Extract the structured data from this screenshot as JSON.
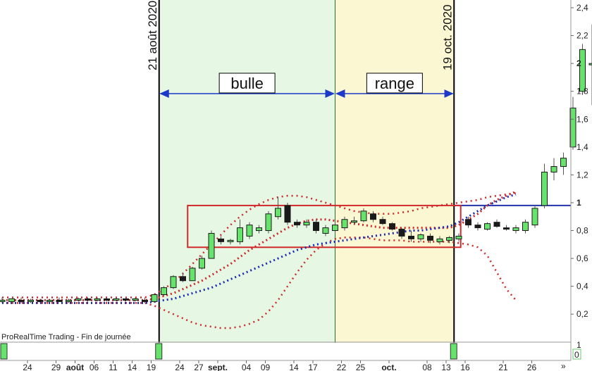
{
  "chart_data": {
    "type": "candlestick",
    "footer": "ProRealTime Trading - Fin de journée",
    "y_axis": {
      "range": [
        0.1,
        2.5
      ],
      "ticks": [
        "2,4",
        "2,2",
        "2",
        "1,8",
        "1,6",
        "1,4",
        "1,2",
        "1",
        "0,8",
        "0,6",
        "0,4",
        "0,2"
      ],
      "bold_ticks": [
        "2",
        "1"
      ]
    },
    "x_ticks": [
      {
        "label": "24",
        "i": 0
      },
      {
        "label": "29",
        "i": 3
      },
      {
        "label": "août",
        "i": 5,
        "bold": true
      },
      {
        "label": "06",
        "i": 7
      },
      {
        "label": "11",
        "i": 9
      },
      {
        "label": "14",
        "i": 11
      },
      {
        "label": "19",
        "i": 13
      },
      {
        "label": "24",
        "i": 16
      },
      {
        "label": "27",
        "i": 18
      },
      {
        "label": "sept.",
        "i": 20,
        "bold": true
      },
      {
        "label": "04",
        "i": 23
      },
      {
        "label": "09",
        "i": 25
      },
      {
        "label": "14",
        "i": 28
      },
      {
        "label": "17",
        "i": 30
      },
      {
        "label": "22",
        "i": 33
      },
      {
        "label": "25",
        "i": 35
      },
      {
        "label": "oct.",
        "i": 38,
        "bold": true
      },
      {
        "label": "08",
        "i": 42
      },
      {
        "label": "13",
        "i": 44
      },
      {
        "label": "16",
        "i": 46
      },
      {
        "label": "21",
        "i": 50
      },
      {
        "label": "26",
        "i": 53
      }
    ],
    "vertical_labels": [
      {
        "text": "21 août 2020",
        "i": 16.5
      },
      {
        "text": "19 oct. 2020",
        "i": 47.5
      }
    ],
    "zones": [
      {
        "name": "bulle",
        "from": 16.5,
        "to": 35,
        "color": "#e6f7e4"
      },
      {
        "name": "range",
        "from": 35,
        "to": 47.5,
        "color": "#fbf7d2"
      }
    ],
    "reference_line": 0.98,
    "range_box": {
      "from": 19.5,
      "to": 48.2,
      "low": 0.68,
      "high": 0.98
    },
    "candles": [
      {
        "o": 0.3,
        "h": 0.32,
        "l": 0.28,
        "c": 0.3
      },
      {
        "o": 0.29,
        "h": 0.31,
        "l": 0.28,
        "c": 0.31
      },
      {
        "o": 0.3,
        "h": 0.32,
        "l": 0.28,
        "c": 0.29
      },
      {
        "o": 0.29,
        "h": 0.31,
        "l": 0.28,
        "c": 0.3
      },
      {
        "o": 0.3,
        "h": 0.31,
        "l": 0.28,
        "c": 0.29
      },
      {
        "o": 0.29,
        "h": 0.31,
        "l": 0.28,
        "c": 0.3
      },
      {
        "o": 0.3,
        "h": 0.32,
        "l": 0.29,
        "c": 0.29
      },
      {
        "o": 0.29,
        "h": 0.31,
        "l": 0.28,
        "c": 0.3
      },
      {
        "o": 0.3,
        "h": 0.32,
        "l": 0.29,
        "c": 0.31
      },
      {
        "o": 0.31,
        "h": 0.32,
        "l": 0.29,
        "c": 0.3
      },
      {
        "o": 0.3,
        "h": 0.32,
        "l": 0.29,
        "c": 0.31
      },
      {
        "o": 0.31,
        "h": 0.32,
        "l": 0.29,
        "c": 0.3
      },
      {
        "o": 0.3,
        "h": 0.32,
        "l": 0.29,
        "c": 0.31
      },
      {
        "o": 0.31,
        "h": 0.32,
        "l": 0.29,
        "c": 0.3
      },
      {
        "o": 0.3,
        "h": 0.32,
        "l": 0.29,
        "c": 0.31
      },
      {
        "o": 0.3,
        "h": 0.32,
        "l": 0.28,
        "c": 0.29
      },
      {
        "o": 0.29,
        "h": 0.35,
        "l": 0.28,
        "c": 0.34
      },
      {
        "o": 0.34,
        "h": 0.4,
        "l": 0.33,
        "c": 0.39
      },
      {
        "o": 0.39,
        "h": 0.48,
        "l": 0.38,
        "c": 0.47
      },
      {
        "o": 0.47,
        "h": 0.5,
        "l": 0.43,
        "c": 0.44
      },
      {
        "o": 0.44,
        "h": 0.54,
        "l": 0.44,
        "c": 0.53
      },
      {
        "o": 0.53,
        "h": 0.62,
        "l": 0.52,
        "c": 0.6
      },
      {
        "o": 0.6,
        "h": 0.8,
        "l": 0.6,
        "c": 0.78
      },
      {
        "o": 0.74,
        "h": 0.76,
        "l": 0.7,
        "c": 0.72
      },
      {
        "o": 0.72,
        "h": 0.74,
        "l": 0.7,
        "c": 0.73
      },
      {
        "o": 0.72,
        "h": 0.88,
        "l": 0.7,
        "c": 0.82
      },
      {
        "o": 0.76,
        "h": 0.86,
        "l": 0.74,
        "c": 0.84
      },
      {
        "o": 0.8,
        "h": 0.84,
        "l": 0.78,
        "c": 0.82
      },
      {
        "o": 0.8,
        "h": 0.94,
        "l": 0.78,
        "c": 0.92
      },
      {
        "o": 0.9,
        "h": 1.04,
        "l": 0.88,
        "c": 0.96
      },
      {
        "o": 0.98,
        "h": 1.0,
        "l": 0.84,
        "c": 0.86
      },
      {
        "o": 0.86,
        "h": 0.88,
        "l": 0.82,
        "c": 0.84
      },
      {
        "o": 0.84,
        "h": 0.88,
        "l": 0.82,
        "c": 0.86
      },
      {
        "o": 0.86,
        "h": 0.88,
        "l": 0.78,
        "c": 0.8
      },
      {
        "o": 0.78,
        "h": 0.84,
        "l": 0.76,
        "c": 0.82
      },
      {
        "o": 0.8,
        "h": 0.86,
        "l": 0.78,
        "c": 0.84
      },
      {
        "o": 0.82,
        "h": 0.9,
        "l": 0.8,
        "c": 0.88
      },
      {
        "o": 0.86,
        "h": 0.9,
        "l": 0.84,
        "c": 0.87
      },
      {
        "o": 0.87,
        "h": 0.96,
        "l": 0.86,
        "c": 0.94
      },
      {
        "o": 0.92,
        "h": 0.94,
        "l": 0.86,
        "c": 0.88
      },
      {
        "o": 0.88,
        "h": 0.9,
        "l": 0.84,
        "c": 0.85
      },
      {
        "o": 0.85,
        "h": 0.86,
        "l": 0.8,
        "c": 0.81
      },
      {
        "o": 0.81,
        "h": 0.82,
        "l": 0.74,
        "c": 0.76
      },
      {
        "o": 0.76,
        "h": 0.8,
        "l": 0.72,
        "c": 0.74
      },
      {
        "o": 0.74,
        "h": 0.78,
        "l": 0.72,
        "c": 0.77
      },
      {
        "o": 0.76,
        "h": 0.78,
        "l": 0.71,
        "c": 0.73
      },
      {
        "o": 0.72,
        "h": 0.76,
        "l": 0.7,
        "c": 0.74
      },
      {
        "o": 0.73,
        "h": 0.76,
        "l": 0.71,
        "c": 0.75
      },
      {
        "o": 0.74,
        "h": 0.78,
        "l": 0.72,
        "c": 0.76
      },
      {
        "o": 0.88,
        "h": 0.9,
        "l": 0.82,
        "c": 0.84
      },
      {
        "o": 0.84,
        "h": 0.86,
        "l": 0.8,
        "c": 0.82
      },
      {
        "o": 0.81,
        "h": 0.86,
        "l": 0.8,
        "c": 0.85
      },
      {
        "o": 0.86,
        "h": 0.88,
        "l": 0.82,
        "c": 0.83
      },
      {
        "o": 0.82,
        "h": 0.84,
        "l": 0.8,
        "c": 0.81
      },
      {
        "o": 0.8,
        "h": 0.84,
        "l": 0.78,
        "c": 0.82
      },
      {
        "o": 0.8,
        "h": 0.88,
        "l": 0.78,
        "c": 0.86
      },
      {
        "o": 0.84,
        "h": 0.98,
        "l": 0.82,
        "c": 0.96
      },
      {
        "o": 0.98,
        "h": 1.28,
        "l": 0.96,
        "c": 1.22
      },
      {
        "o": 1.22,
        "h": 1.32,
        "l": 1.16,
        "c": 1.26
      },
      {
        "o": 1.26,
        "h": 1.36,
        "l": 1.2,
        "c": 1.32
      },
      {
        "o": 1.4,
        "h": 1.76,
        "l": 1.38,
        "c": 1.68
      },
      {
        "o": 1.8,
        "h": 2.14,
        "l": 1.78,
        "c": 2.1
      },
      {
        "o": 2.0,
        "h": 2.28,
        "l": 1.7,
        "c": 2.0
      }
    ],
    "bands": {
      "upper": [
        0.32,
        0.32,
        0.32,
        0.32,
        0.32,
        0.32,
        0.32,
        0.32,
        0.32,
        0.32,
        0.32,
        0.32,
        0.32,
        0.32,
        0.32,
        0.32,
        0.34,
        0.38,
        0.43,
        0.49,
        0.56,
        0.63,
        0.7,
        0.77,
        0.84,
        0.9,
        0.95,
        0.99,
        1.02,
        1.04,
        1.05,
        1.05,
        1.04,
        1.02,
        1.0,
        0.98,
        0.96,
        0.94,
        0.93,
        0.92,
        0.92,
        0.92,
        0.93,
        0.94,
        0.96,
        0.97,
        0.98,
        0.99,
        1.0,
        1.01,
        1.02,
        1.04,
        1.05,
        1.06,
        1.07
      ],
      "lower": [
        0.28,
        0.28,
        0.28,
        0.28,
        0.28,
        0.28,
        0.28,
        0.28,
        0.28,
        0.28,
        0.28,
        0.28,
        0.28,
        0.28,
        0.28,
        0.28,
        0.26,
        0.23,
        0.2,
        0.17,
        0.14,
        0.12,
        0.11,
        0.1,
        0.1,
        0.11,
        0.13,
        0.16,
        0.22,
        0.3,
        0.4,
        0.5,
        0.59,
        0.66,
        0.71,
        0.74,
        0.75,
        0.75,
        0.75,
        0.74,
        0.73,
        0.73,
        0.73,
        0.72,
        0.72,
        0.72,
        0.72,
        0.72,
        0.71,
        0.7,
        0.68,
        0.62,
        0.5,
        0.38,
        0.3
      ],
      "middle": [
        0.3,
        0.3,
        0.3,
        0.3,
        0.3,
        0.3,
        0.3,
        0.3,
        0.3,
        0.3,
        0.3,
        0.3,
        0.3,
        0.3,
        0.3,
        0.3,
        0.31,
        0.33,
        0.35,
        0.38,
        0.41,
        0.44,
        0.48,
        0.52,
        0.56,
        0.61,
        0.66,
        0.7,
        0.74,
        0.78,
        0.82,
        0.85,
        0.87,
        0.88,
        0.88,
        0.87,
        0.86,
        0.85,
        0.84,
        0.83,
        0.82,
        0.82,
        0.82,
        0.82,
        0.82,
        0.82,
        0.82,
        0.82,
        0.84,
        0.88,
        0.92,
        0.98,
        1.02,
        1.05,
        1.08
      ],
      "lower_dark": [
        0.28,
        0.28,
        0.28,
        0.28,
        0.28,
        0.28,
        0.28,
        0.28,
        0.28,
        0.28,
        0.28,
        0.28,
        0.28,
        0.28,
        0.28,
        0.28,
        0.29,
        0.3,
        0.31,
        0.33,
        0.35,
        0.37,
        0.39,
        0.42,
        0.45,
        0.48,
        0.51,
        0.54,
        0.57,
        0.6,
        0.63,
        0.66,
        0.68,
        0.7,
        0.71,
        0.72,
        0.73,
        0.74,
        0.75,
        0.76,
        0.77,
        0.78,
        0.79,
        0.8,
        0.8,
        0.81,
        0.82,
        0.83,
        0.86,
        0.9,
        0.94,
        0.98,
        1.01,
        1.04,
        1.06
      ]
    },
    "colors": {
      "up": "#66e36b",
      "down": "#1a1a1a",
      "outline": "#1a1a1a",
      "ma_red": "#cc2a2a",
      "ma_blue": "#1b2ab0",
      "box": "#d22a2a",
      "arrow": "#1c39c8",
      "ref_line": "#2233aa"
    }
  }
}
